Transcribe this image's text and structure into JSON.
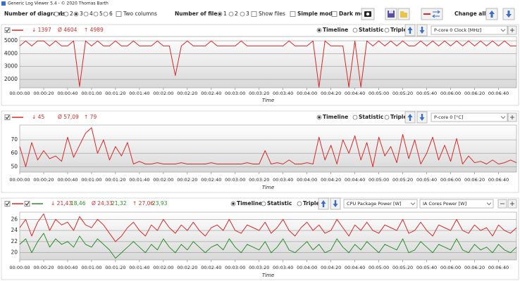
{
  "toolbar": {
    "app_title": "Generic Log Viewer 5.4 - © 2020 Thomas Barth",
    "diagrams_label": "Number of diagrams",
    "diagram_options": [
      "1",
      "2",
      "3",
      "4",
      "5",
      "6"
    ],
    "diagrams_selected": 2,
    "two_columns": "Two columns",
    "files_label": "Number of files",
    "file_options": [
      "1",
      "2",
      "3"
    ],
    "files_selected": 0,
    "show_files": "Show files",
    "simple_mode": "Simple mode",
    "dark_mode": "Dark mod",
    "change_all": "Change all"
  },
  "chart_data": [
    {
      "type": "line",
      "xlabel": "Time",
      "views": [
        "Timeline",
        "Statistic",
        "Triple"
      ],
      "view_selected": 0,
      "selectors": [
        "P-core 0 Clock [MHz]"
      ],
      "xlim": [
        0,
        415
      ],
      "ylim": [
        1350,
        5330
      ],
      "yticks": [
        2000,
        3000,
        4000,
        5000
      ],
      "grid": true,
      "xticks": [
        {
          "value": 0,
          "label": "00:00:00"
        },
        {
          "value": 20,
          "label": "00:00:20"
        },
        {
          "value": 40,
          "label": "00:00:40"
        },
        {
          "value": 60,
          "label": "00:01:00"
        },
        {
          "value": 80,
          "label": "00:01:20"
        },
        {
          "value": 100,
          "label": "00:01:40"
        },
        {
          "value": 120,
          "label": "00:02:00"
        },
        {
          "value": 140,
          "label": "00:02:20"
        },
        {
          "value": 160,
          "label": "00:02:40"
        },
        {
          "value": 180,
          "label": "00:03:00"
        },
        {
          "value": 200,
          "label": "00:03:20"
        },
        {
          "value": 220,
          "label": "00:03:40"
        },
        {
          "value": 240,
          "label": "00:04:00"
        },
        {
          "value": 260,
          "label": "00:04:20"
        },
        {
          "value": 280,
          "label": "00:04:40"
        },
        {
          "value": 300,
          "label": "00:05:00"
        },
        {
          "value": 320,
          "label": "00:05:20"
        },
        {
          "value": 340,
          "label": "00:05:40"
        },
        {
          "value": 360,
          "label": "00:06:00"
        },
        {
          "value": 380,
          "label": "00:06:20"
        },
        {
          "value": 400,
          "label": "00:06:40"
        }
      ],
      "x": [
        0,
        5,
        10,
        15,
        20,
        25,
        30,
        35,
        40,
        45,
        50,
        55,
        60,
        65,
        70,
        75,
        80,
        85,
        90,
        95,
        100,
        105,
        110,
        115,
        120,
        125,
        130,
        135,
        140,
        145,
        150,
        155,
        160,
        165,
        170,
        175,
        180,
        185,
        190,
        195,
        200,
        205,
        210,
        215,
        220,
        225,
        230,
        235,
        240,
        245,
        250,
        255,
        260,
        265,
        270,
        275,
        280,
        285,
        290,
        295,
        300,
        305,
        310,
        315,
        320,
        325,
        330,
        335,
        340,
        345,
        350,
        355,
        360,
        365,
        370,
        375,
        380,
        385,
        390,
        395,
        400,
        405,
        410,
        415
      ],
      "series": [
        {
          "name": "P-core 0 Clock [MHz]",
          "color": "#d42a2a",
          "stats": [
            "↓ 1397",
            "Ø 4604",
            "↑ 4989"
          ],
          "values": [
            4600,
            4989,
            4600,
            4989,
            4989,
            4600,
            4989,
            4600,
            4600,
            4989,
            1450,
            4989,
            4600,
            4989,
            4600,
            4600,
            4989,
            4600,
            4600,
            4989,
            4600,
            4600,
            4600,
            4989,
            4600,
            4600,
            2300,
            4600,
            4989,
            4600,
            4600,
            4600,
            4989,
            4600,
            4600,
            4600,
            4600,
            4989,
            4600,
            4600,
            4600,
            4600,
            4600,
            4600,
            4600,
            4989,
            4600,
            4600,
            4600,
            4989,
            1397,
            4989,
            4600,
            4600,
            4600,
            1400,
            4989,
            1400,
            4989,
            4600,
            4989,
            4600,
            4989,
            4600,
            4989,
            4600,
            4600,
            4989,
            4600,
            4989,
            4600,
            4989,
            4600,
            4989,
            4600,
            4989,
            4600,
            4989,
            4600,
            4989,
            4600,
            4989,
            4600,
            4600
          ]
        }
      ]
    },
    {
      "type": "line",
      "xlabel": "Time",
      "views": [
        "Timeline",
        "Statistic",
        "Triple"
      ],
      "view_selected": 0,
      "selectors": [
        "P-core 0 [°C]"
      ],
      "xlim": [
        0,
        415
      ],
      "ylim": [
        46,
        81
      ],
      "yticks": [
        50,
        60,
        70
      ],
      "grid": true,
      "xticks": [
        {
          "value": 0,
          "label": "00:00:00"
        },
        {
          "value": 20,
          "label": "00:00:20"
        },
        {
          "value": 40,
          "label": "00:00:40"
        },
        {
          "value": 60,
          "label": "00:01:00"
        },
        {
          "value": 80,
          "label": "00:01:20"
        },
        {
          "value": 100,
          "label": "00:01:40"
        },
        {
          "value": 120,
          "label": "00:02:00"
        },
        {
          "value": 140,
          "label": "00:02:20"
        },
        {
          "value": 160,
          "label": "00:02:40"
        },
        {
          "value": 180,
          "label": "00:03:00"
        },
        {
          "value": 200,
          "label": "00:03:20"
        },
        {
          "value": 220,
          "label": "00:03:40"
        },
        {
          "value": 240,
          "label": "00:04:00"
        },
        {
          "value": 260,
          "label": "00:04:20"
        },
        {
          "value": 280,
          "label": "00:04:40"
        },
        {
          "value": 300,
          "label": "00:05:00"
        },
        {
          "value": 320,
          "label": "00:05:20"
        },
        {
          "value": 340,
          "label": "00:05:40"
        },
        {
          "value": 360,
          "label": "00:06:00"
        },
        {
          "value": 380,
          "label": "00:06:20"
        },
        {
          "value": 400,
          "label": "00:06:40"
        }
      ],
      "x": [
        0,
        5,
        10,
        15,
        20,
        25,
        30,
        35,
        40,
        45,
        50,
        55,
        60,
        65,
        70,
        75,
        80,
        85,
        90,
        95,
        100,
        105,
        110,
        115,
        120,
        125,
        130,
        135,
        140,
        145,
        150,
        155,
        160,
        165,
        170,
        175,
        180,
        185,
        190,
        195,
        200,
        205,
        210,
        215,
        220,
        225,
        230,
        235,
        240,
        245,
        250,
        255,
        260,
        265,
        270,
        275,
        280,
        285,
        290,
        295,
        300,
        305,
        310,
        315,
        320,
        325,
        330,
        335,
        340,
        345,
        350,
        355,
        360,
        365,
        370,
        375,
        380,
        385,
        390,
        395,
        400,
        405,
        410,
        415
      ],
      "series": [
        {
          "name": "P-core 0 [°C]",
          "color": "#d42a2a",
          "stats": [
            "↓ 45",
            "Ø 57,09",
            "↑ 79"
          ],
          "values": [
            65,
            50,
            68,
            55,
            62,
            56,
            58,
            54,
            72,
            57,
            66,
            75,
            79,
            60,
            70,
            55,
            65,
            58,
            68,
            52,
            54,
            52,
            52,
            53,
            52,
            52,
            52,
            53,
            52,
            52,
            52,
            52,
            53,
            52,
            52,
            52,
            52,
            52,
            53,
            52,
            52,
            62,
            52,
            53,
            52,
            55,
            52,
            52,
            53,
            52,
            72,
            55,
            66,
            52,
            70,
            60,
            73,
            55,
            68,
            50,
            72,
            58,
            65,
            53,
            74,
            56,
            70,
            52,
            60,
            72,
            55,
            66,
            54,
            71,
            52,
            58,
            53,
            54,
            52,
            55,
            52,
            53,
            55,
            53
          ]
        }
      ]
    },
    {
      "type": "line",
      "xlabel": "Time",
      "views": [
        "Timeline",
        "Statistic",
        "Triple"
      ],
      "view_selected": 0,
      "selectors": [
        "CPU Package Power [W]",
        "IA Cores Power [W]"
      ],
      "xlim": [
        0,
        415
      ],
      "ylim": [
        18.7,
        27.3
      ],
      "yticks": [
        20,
        22,
        24,
        26
      ],
      "grid": true,
      "xticks": [
        {
          "value": 0,
          "label": "00:00:00"
        },
        {
          "value": 20,
          "label": "00:00:20"
        },
        {
          "value": 40,
          "label": "00:00:40"
        },
        {
          "value": 60,
          "label": "00:01:00"
        },
        {
          "value": 80,
          "label": "00:01:20"
        },
        {
          "value": 100,
          "label": "00:01:40"
        },
        {
          "value": 120,
          "label": "00:02:00"
        },
        {
          "value": 140,
          "label": "00:02:20"
        },
        {
          "value": 160,
          "label": "00:02:40"
        },
        {
          "value": 180,
          "label": "00:03:00"
        },
        {
          "value": 200,
          "label": "00:03:20"
        },
        {
          "value": 220,
          "label": "00:03:40"
        },
        {
          "value": 240,
          "label": "00:04:00"
        },
        {
          "value": 260,
          "label": "00:04:20"
        },
        {
          "value": 280,
          "label": "00:04:40"
        },
        {
          "value": 300,
          "label": "00:05:00"
        },
        {
          "value": 320,
          "label": "00:05:20"
        },
        {
          "value": 340,
          "label": "00:05:40"
        },
        {
          "value": 360,
          "label": "00:06:00"
        },
        {
          "value": 380,
          "label": "00:06:20"
        },
        {
          "value": 400,
          "label": "00:06:40"
        }
      ],
      "x": [
        0,
        5,
        10,
        15,
        20,
        25,
        30,
        35,
        40,
        45,
        50,
        55,
        60,
        65,
        70,
        75,
        80,
        85,
        90,
        95,
        100,
        105,
        110,
        115,
        120,
        125,
        130,
        135,
        140,
        145,
        150,
        155,
        160,
        165,
        170,
        175,
        180,
        185,
        190,
        195,
        200,
        205,
        210,
        215,
        220,
        225,
        230,
        235,
        240,
        245,
        250,
        255,
        260,
        265,
        270,
        275,
        280,
        285,
        290,
        295,
        300,
        305,
        310,
        315,
        320,
        325,
        330,
        335,
        340,
        345,
        350,
        355,
        360,
        365,
        370,
        375,
        380,
        385,
        390,
        395,
        400,
        405,
        410,
        415
      ],
      "series": [
        {
          "name": "CPU Package Power [W]",
          "color": "#d42a2a",
          "stats": [
            "↓ 21,43",
            "Ø 24,33",
            "↑ 27,06"
          ],
          "values": [
            24.5,
            26,
            23,
            25.5,
            27,
            24,
            26,
            25,
            25.5,
            24,
            26.5,
            25,
            24.5,
            26,
            25,
            23.5,
            22,
            23,
            24.5,
            25.5,
            24,
            23,
            25,
            24,
            26,
            24.5,
            23.5,
            25,
            24,
            25.5,
            24,
            23,
            24.5,
            25,
            24,
            26,
            24,
            23.5,
            25,
            24.5,
            24,
            25.5,
            23.5,
            24.5,
            26,
            24,
            23,
            24.5,
            25.5,
            24,
            25,
            23.5,
            24,
            26,
            24.5,
            23,
            25,
            24,
            25.5,
            24,
            23.5,
            25,
            24.5,
            24,
            26,
            23.5,
            24,
            25.5,
            24,
            23,
            25,
            24.5,
            24,
            26,
            24,
            23.5,
            25,
            24,
            24.5,
            23,
            25,
            24,
            23.5,
            24.5
          ]
        },
        {
          "name": "IA Cores Power [W]",
          "color": "#2a8f2a",
          "stats": [
            "18,46",
            "21,32",
            "23,93"
          ],
          "values": [
            21.5,
            22.5,
            20,
            22,
            23.5,
            21,
            22.5,
            21.5,
            22,
            21,
            23,
            21.5,
            21,
            22.5,
            21.5,
            20.5,
            19,
            20,
            21,
            22,
            21,
            20,
            21.5,
            20.5,
            22.5,
            21,
            20,
            21.5,
            20.5,
            22,
            21,
            20,
            21,
            21.5,
            20.5,
            22.5,
            21,
            20,
            21.5,
            21,
            20.5,
            22,
            20,
            21,
            22.5,
            20.5,
            20,
            21,
            22,
            20.5,
            21.5,
            20,
            20.5,
            22.5,
            21,
            20,
            21.5,
            20.5,
            22,
            21,
            20,
            21.5,
            21,
            20.5,
            22.5,
            20,
            20.5,
            22,
            21,
            20,
            21.5,
            21,
            20.5,
            22.5,
            20.5,
            20,
            21.5,
            20.5,
            21,
            20,
            21.5,
            20.5,
            20,
            21
          ]
        }
      ]
    }
  ]
}
